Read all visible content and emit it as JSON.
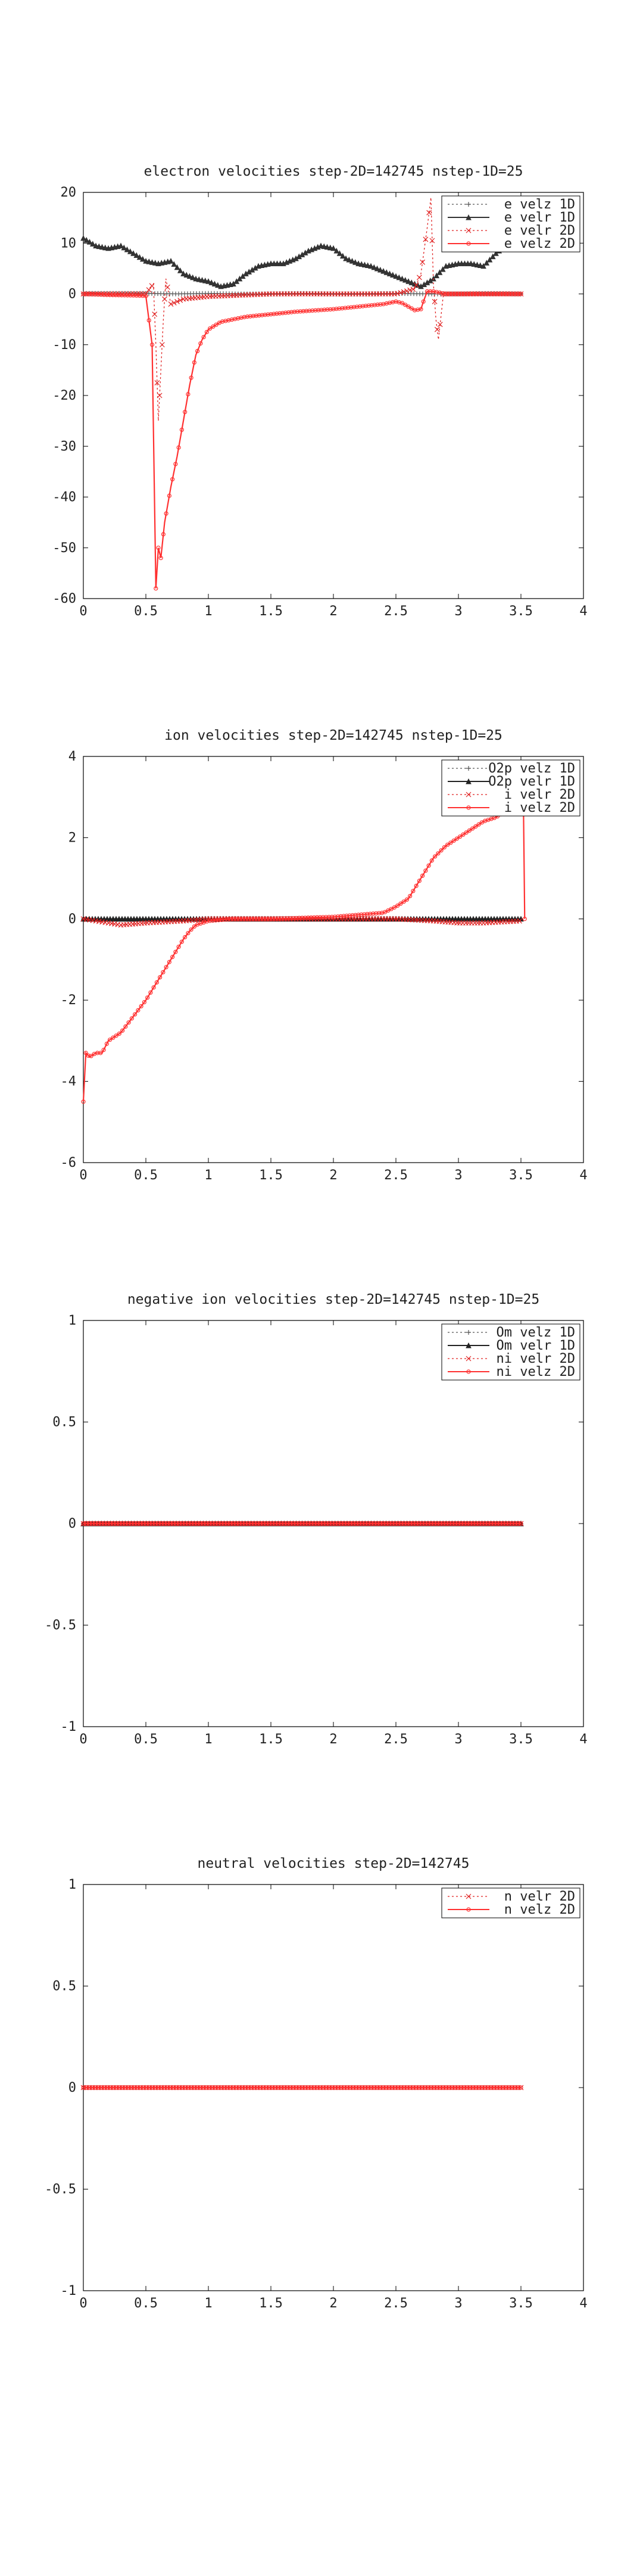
{
  "chart_data": [
    {
      "type": "line",
      "title": "electron velocities step-2D=142745 nstep-1D=25",
      "xlim": [
        0,
        4
      ],
      "ylim": [
        -60,
        20
      ],
      "xticks": [
        0,
        0.5,
        1,
        1.5,
        2,
        2.5,
        3,
        3.5,
        4
      ],
      "xtick_labels": [
        "0",
        "0.5",
        "1",
        "1.5",
        "2",
        "2.5",
        "3",
        "3.5",
        "4"
      ],
      "yticks": [
        20,
        10,
        0,
        -10,
        -20,
        -30,
        -40,
        -50,
        -60
      ],
      "ytick_labels": [
        "20",
        "10",
        "0",
        "-10",
        "-20",
        "-30",
        "-40",
        "-50",
        "-60"
      ],
      "legend_position": "top-right",
      "series": [
        {
          "name": "e velz 1D",
          "color": "#555555",
          "style": "dotted",
          "marker": "+",
          "x": [
            0,
            0.25,
            0.5,
            0.75,
            1,
            1.25,
            1.5,
            1.75,
            2,
            2.25,
            2.5,
            2.75,
            3,
            3.25,
            3.5
          ],
          "y": [
            0.1,
            0.1,
            0.1,
            0,
            0.1,
            0,
            0,
            0.1,
            0,
            0,
            0.1,
            0,
            0,
            0.1,
            0
          ]
        },
        {
          "name": "e velr 1D",
          "color": "#333333",
          "style": "solid",
          "marker": "triangle",
          "x": [
            0,
            0.1,
            0.2,
            0.3,
            0.4,
            0.5,
            0.6,
            0.7,
            0.8,
            0.9,
            1.0,
            1.1,
            1.2,
            1.3,
            1.4,
            1.5,
            1.6,
            1.7,
            1.8,
            1.9,
            2.0,
            2.1,
            2.2,
            2.3,
            2.4,
            2.5,
            2.6,
            2.7,
            2.8,
            2.9,
            3.0,
            3.1,
            3.2,
            3.3,
            3.4,
            3.5
          ],
          "y": [
            11,
            9.5,
            9,
            9.5,
            8,
            6.5,
            6,
            6.5,
            4,
            3,
            2.5,
            1.5,
            2,
            4,
            5.5,
            6,
            6,
            7,
            8.5,
            9.5,
            9,
            7,
            6,
            5.5,
            4.5,
            3.5,
            2.5,
            1.5,
            3,
            5.5,
            6,
            6,
            5.5,
            8,
            10,
            9
          ]
        },
        {
          "name": "e velr 2D",
          "color": "#e02020",
          "style": "dotted",
          "marker": "x",
          "x": [
            0,
            0.5,
            0.56,
            0.58,
            0.6,
            0.62,
            0.64,
            0.66,
            0.7,
            0.8,
            1.0,
            1.5,
            2.0,
            2.5,
            2.65,
            2.7,
            2.75,
            2.78,
            2.8,
            2.82,
            2.84,
            2.88,
            3.0,
            3.5
          ],
          "y": [
            0,
            0,
            2,
            -10,
            -25,
            -15,
            -5,
            3,
            -2,
            -1,
            -0.5,
            0,
            0,
            0,
            1,
            4,
            13,
            19,
            2,
            -5,
            -9,
            0,
            0,
            0
          ]
        },
        {
          "name": "e velz 2D",
          "color": "#ff3030",
          "style": "solid",
          "marker": "circle",
          "x": [
            0,
            0.2,
            0.4,
            0.5,
            0.55,
            0.58,
            0.6,
            0.62,
            0.65,
            0.7,
            0.75,
            0.8,
            0.85,
            0.9,
            0.95,
            1.0,
            1.1,
            1.2,
            1.3,
            1.5,
            1.7,
            2.0,
            2.2,
            2.4,
            2.5,
            2.55,
            2.6,
            2.65,
            2.7,
            2.72,
            2.75,
            2.8,
            2.9,
            3.0,
            3.5
          ],
          "y": [
            0,
            -0.2,
            -0.3,
            -0.4,
            -10,
            -58,
            -50,
            -52,
            -45,
            -38,
            -32,
            -25,
            -18,
            -12,
            -9,
            -7,
            -5.5,
            -5,
            -4.5,
            -4,
            -3.5,
            -3,
            -2.5,
            -2,
            -1.5,
            -1.8,
            -2.5,
            -3.2,
            -3,
            -1.5,
            0.5,
            0.5,
            0,
            0,
            0
          ]
        }
      ]
    },
    {
      "type": "line",
      "title": "ion velocities step-2D=142745 nstep-1D=25",
      "xlim": [
        0,
        4
      ],
      "ylim": [
        -6,
        4
      ],
      "xticks": [
        0,
        0.5,
        1,
        1.5,
        2,
        2.5,
        3,
        3.5,
        4
      ],
      "xtick_labels": [
        "0",
        "0.5",
        "1",
        "1.5",
        "2",
        "2.5",
        "3",
        "3.5",
        "4"
      ],
      "yticks": [
        4,
        2,
        0,
        -2,
        -4,
        -6
      ],
      "ytick_labels": [
        "4",
        "2",
        "0",
        "-2",
        "-4",
        "-6"
      ],
      "legend_position": "top-right",
      "series": [
        {
          "name": "O2p velz 1D",
          "color": "#555555",
          "style": "dotted",
          "marker": "+",
          "x": [
            0,
            0.5,
            1,
            1.5,
            2,
            2.5,
            3,
            3.5
          ],
          "y": [
            0,
            0,
            0,
            0,
            0,
            0,
            0,
            0
          ]
        },
        {
          "name": "O2p velr 1D",
          "color": "#222222",
          "style": "solid",
          "marker": "triangle",
          "x": [
            0,
            0.5,
            1,
            1.5,
            2,
            2.5,
            3,
            3.5
          ],
          "y": [
            0,
            0,
            0,
            0,
            0,
            0,
            0,
            0
          ]
        },
        {
          "name": "i velr 2D",
          "color": "#e02020",
          "style": "dotted",
          "marker": "x",
          "x": [
            0,
            0.1,
            0.2,
            0.3,
            0.5,
            0.8,
            1.0,
            1.5,
            2.0,
            2.5,
            2.8,
            3.0,
            3.2,
            3.5
          ],
          "y": [
            0,
            -0.05,
            -0.1,
            -0.15,
            -0.1,
            -0.05,
            0,
            0,
            0,
            0,
            -0.05,
            -0.1,
            -0.1,
            -0.05
          ]
        },
        {
          "name": "i velz 2D",
          "color": "#ff3030",
          "style": "solid",
          "marker": "circle",
          "x": [
            0,
            0.02,
            0.05,
            0.1,
            0.15,
            0.2,
            0.3,
            0.4,
            0.5,
            0.6,
            0.7,
            0.8,
            0.85,
            0.9,
            1.0,
            1.2,
            1.5,
            2.0,
            2.2,
            2.4,
            2.5,
            2.6,
            2.7,
            2.8,
            2.9,
            3.0,
            3.1,
            3.2,
            3.3,
            3.4,
            3.45,
            3.5,
            3.52,
            3.53
          ],
          "y": [
            -4.5,
            -3.3,
            -3.4,
            -3.3,
            -3.3,
            -3.0,
            -2.8,
            -2.4,
            -2.0,
            -1.5,
            -1.0,
            -0.5,
            -0.3,
            -0.15,
            -0.05,
            0,
            0,
            0.05,
            0.1,
            0.15,
            0.3,
            0.5,
            1.0,
            1.5,
            1.8,
            2.0,
            2.2,
            2.4,
            2.5,
            2.7,
            2.8,
            2.75,
            2.8,
            0
          ]
        }
      ]
    },
    {
      "type": "line",
      "title": "negative ion velocities step-2D=142745 nstep-1D=25",
      "xlim": [
        0,
        4
      ],
      "ylim": [
        -1,
        1
      ],
      "xticks": [
        0,
        0.5,
        1,
        1.5,
        2,
        2.5,
        3,
        3.5,
        4
      ],
      "xtick_labels": [
        "0",
        "0.5",
        "1",
        "1.5",
        "2",
        "2.5",
        "3",
        "3.5",
        "4"
      ],
      "yticks": [
        1,
        0.5,
        0,
        -0.5,
        -1
      ],
      "ytick_labels": [
        "1",
        "0.5",
        "0",
        "-0.5",
        "-1"
      ],
      "legend_position": "top-right",
      "series": [
        {
          "name": "Om velz 1D",
          "color": "#555555",
          "style": "dotted",
          "marker": "+",
          "x": [
            0,
            3.5
          ],
          "y": [
            0,
            0
          ]
        },
        {
          "name": "Om velr 1D",
          "color": "#222222",
          "style": "solid",
          "marker": "triangle",
          "x": [
            0,
            3.5
          ],
          "y": [
            0,
            0
          ]
        },
        {
          "name": "ni velr 2D",
          "color": "#e02020",
          "style": "dotted",
          "marker": "x",
          "x": [
            0,
            3.5
          ],
          "y": [
            0,
            0
          ]
        },
        {
          "name": "ni velz 2D",
          "color": "#ff3030",
          "style": "solid",
          "marker": "circle",
          "x": [
            0,
            3.5
          ],
          "y": [
            0,
            0
          ]
        }
      ]
    },
    {
      "type": "line",
      "title": "neutral velocities step-2D=142745",
      "xlim": [
        0,
        4
      ],
      "ylim": [
        -1,
        1
      ],
      "xticks": [
        0,
        0.5,
        1,
        1.5,
        2,
        2.5,
        3,
        3.5,
        4
      ],
      "xtick_labels": [
        "0",
        "0.5",
        "1",
        "1.5",
        "2",
        "2.5",
        "3",
        "3.5",
        "4"
      ],
      "yticks": [
        1,
        0.5,
        0,
        -0.5,
        -1
      ],
      "ytick_labels": [
        "1",
        "0.5",
        "0",
        "-0.5",
        "-1"
      ],
      "legend_position": "top-right",
      "series": [
        {
          "name": "n velr 2D",
          "color": "#e02020",
          "style": "dotted",
          "marker": "x",
          "x": [
            0,
            3.5
          ],
          "y": [
            0,
            0
          ]
        },
        {
          "name": "n velz 2D",
          "color": "#ff3030",
          "style": "solid",
          "marker": "circle",
          "x": [
            0,
            3.5
          ],
          "y": [
            0,
            0
          ]
        }
      ]
    }
  ]
}
